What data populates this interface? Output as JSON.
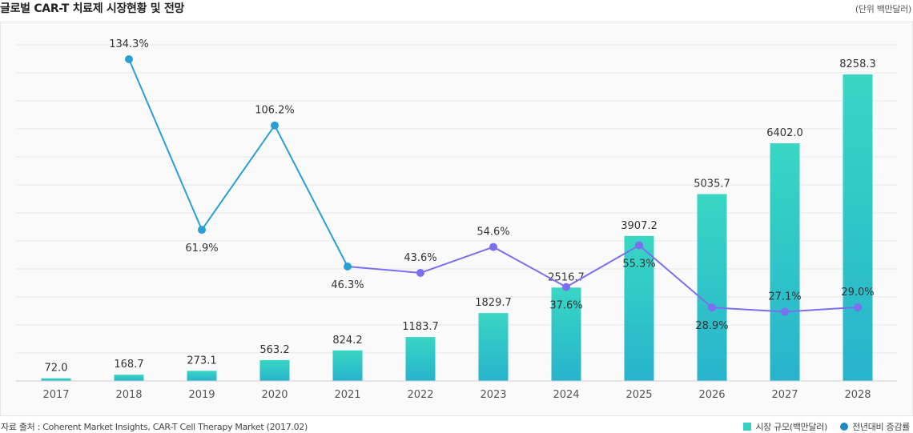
{
  "header": {
    "title": "글로벌 CAR-T 치료제 시장현황 및 전망",
    "unit": "(단위 백만달러)"
  },
  "footer": {
    "source": "자료 출처 : Coherent Market Insights, CAR-T Cell Therapy Market (2017.02)"
  },
  "legend": {
    "bar_label": "시장 규모(백만달러)",
    "line_label": "전년대비 증감률"
  },
  "colors": {
    "bar_top": "#39d6c3",
    "bar_bottom": "#27b3cd",
    "line_blue": "#2a9fd6",
    "line_purple": "#7b6ff0",
    "grid": "#e6e6e6"
  },
  "chart_data": {
    "type": "bar",
    "title": "글로벌 CAR-T 치료제 시장현황 및 전망",
    "categories": [
      "2017",
      "2018",
      "2019",
      "2020",
      "2021",
      "2022",
      "2023",
      "2024",
      "2025",
      "2026",
      "2027",
      "2028"
    ],
    "series": [
      {
        "name": "시장 규모(백만달러)",
        "type": "bar",
        "values": [
          72.0,
          168.7,
          273.1,
          563.2,
          824.2,
          1183.7,
          1829.7,
          2516.7,
          3907.2,
          5035.7,
          6402.0,
          8258.3
        ],
        "labels": [
          "72.0",
          "168.7",
          "273.1",
          "563.2",
          "824.2",
          "1183.7",
          "1829.7",
          "2516.7",
          "3907.2",
          "5035.7",
          "6402.0",
          "8258.3"
        ]
      },
      {
        "name": "전년대비 증감률",
        "type": "line",
        "values": [
          null,
          134.3,
          61.9,
          106.2,
          46.3,
          43.6,
          54.6,
          37.6,
          55.3,
          28.9,
          27.1,
          29.0
        ],
        "labels": [
          "",
          "134.3%",
          "61.9%",
          "106.2%",
          "46.3%",
          "43.6%",
          "54.6%",
          "37.6%",
          "55.3%",
          "28.9%",
          "27.1%",
          "29.0%"
        ]
      }
    ],
    "bar_axis": {
      "min": 0,
      "max": 11000
    },
    "line_axis": {
      "min": -55,
      "max": 160
    },
    "grid": true,
    "legend_position": "bottom-right"
  }
}
